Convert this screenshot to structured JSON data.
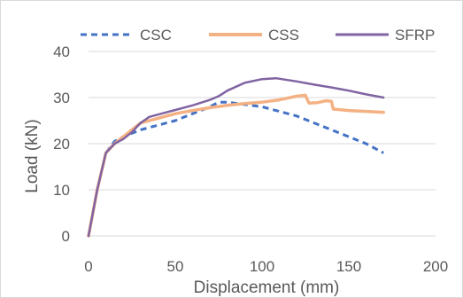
{
  "chart_data": {
    "type": "line",
    "xlabel": "Displacement (mm)",
    "ylabel": "Load (kN)",
    "xlim": [
      0,
      200
    ],
    "ylim": [
      0,
      40
    ],
    "x_ticks": [
      0,
      50,
      100,
      150,
      200
    ],
    "y_ticks": [
      0,
      10,
      20,
      30,
      40
    ],
    "grid": "horizontal major gridlines",
    "legend_position": "top",
    "series": [
      {
        "name": "CSC",
        "color": "#4472c4",
        "style": "dashed",
        "points": [
          [
            0,
            0
          ],
          [
            5,
            10
          ],
          [
            10,
            18
          ],
          [
            15,
            20.5
          ],
          [
            20,
            21.5
          ],
          [
            30,
            23
          ],
          [
            40,
            24
          ],
          [
            50,
            25
          ],
          [
            60,
            26.5
          ],
          [
            70,
            28
          ],
          [
            75,
            29
          ],
          [
            80,
            29
          ],
          [
            90,
            28.5
          ],
          [
            100,
            28
          ],
          [
            110,
            27
          ],
          [
            120,
            26
          ],
          [
            130,
            24.5
          ],
          [
            140,
            23
          ],
          [
            150,
            21.5
          ],
          [
            160,
            20
          ],
          [
            170,
            18
          ]
        ]
      },
      {
        "name": "CSS",
        "color": "#f4b183",
        "style": "solid",
        "points": [
          [
            0,
            0
          ],
          [
            5,
            10
          ],
          [
            10,
            18
          ],
          [
            15,
            20
          ],
          [
            20,
            21.5
          ],
          [
            25,
            23
          ],
          [
            30,
            24.5
          ],
          [
            40,
            25.5
          ],
          [
            50,
            26.5
          ],
          [
            60,
            27.2
          ],
          [
            70,
            27.8
          ],
          [
            80,
            28.3
          ],
          [
            90,
            28.7
          ],
          [
            100,
            29
          ],
          [
            110,
            29.5
          ],
          [
            120,
            30.3
          ],
          [
            125,
            30.5
          ],
          [
            127,
            28.8
          ],
          [
            132,
            28.9
          ],
          [
            137,
            29.3
          ],
          [
            140,
            29.2
          ],
          [
            141,
            27.5
          ],
          [
            150,
            27.2
          ],
          [
            160,
            27
          ],
          [
            170,
            26.8
          ]
        ]
      },
      {
        "name": "SFRP",
        "color": "#8064a2",
        "style": "solid",
        "points": [
          [
            0,
            0
          ],
          [
            5,
            10
          ],
          [
            10,
            18
          ],
          [
            15,
            20
          ],
          [
            20,
            21
          ],
          [
            25,
            22.5
          ],
          [
            30,
            24.5
          ],
          [
            35,
            25.8
          ],
          [
            40,
            26.3
          ],
          [
            50,
            27.3
          ],
          [
            60,
            28.3
          ],
          [
            70,
            29.5
          ],
          [
            75,
            30.3
          ],
          [
            80,
            31.5
          ],
          [
            90,
            33.2
          ],
          [
            100,
            34
          ],
          [
            108,
            34.2
          ],
          [
            120,
            33.5
          ],
          [
            130,
            32.8
          ],
          [
            140,
            32.2
          ],
          [
            150,
            31.5
          ],
          [
            160,
            30.7
          ],
          [
            170,
            30
          ]
        ]
      }
    ]
  }
}
